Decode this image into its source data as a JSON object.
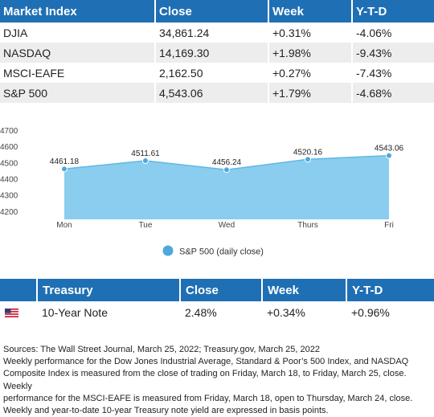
{
  "market_table": {
    "headers": [
      "Market Index",
      "Close",
      "Week",
      "Y-T-D"
    ],
    "rows": [
      [
        "DJIA",
        "34,861.24",
        "+0.31%",
        "-4.06%"
      ],
      [
        "NASDAQ",
        "14,169.30",
        "+1.98%",
        "-9.43%"
      ],
      [
        "MSCI-EAFE",
        "2,162.50",
        "+0.27%",
        "-7.43%"
      ],
      [
        "S&P 500",
        "4,543.06",
        "+1.79%",
        "-4.68%"
      ]
    ]
  },
  "chart_data": {
    "type": "area",
    "categories": [
      "Mon",
      "Tue",
      "Wed",
      "Thurs",
      "Fri"
    ],
    "series": [
      {
        "name": "S&P 500 (daily close)",
        "values": [
          4461.18,
          4511.61,
          4456.24,
          4520.16,
          4543.06
        ]
      }
    ],
    "data_labels": [
      "4461.18",
      "4511.61",
      "4456.24",
      "4520.16",
      "4543.06"
    ],
    "y_ticks": [
      "4700",
      "4600",
      "4500",
      "4400",
      "4300",
      "4200"
    ],
    "ylim": [
      4150,
      4700
    ],
    "grid": false,
    "legend_position": "bottom",
    "fill_color": "#8ACDEE",
    "line_color": "#5FB8E6",
    "marker_color": "#4FA8DC"
  },
  "treasury_table": {
    "headers": [
      "",
      "Treasury",
      "Close",
      "Week",
      "Y-T-D"
    ],
    "row": {
      "flag_icon": "us-flag-icon",
      "name": "10-Year Note",
      "close": "2.48%",
      "week": "+0.34%",
      "ytd": "+0.96%"
    }
  },
  "notes": [
    "Sources: The Wall Street Journal, March 25, 2022; Treasury.gov, March 25, 2022",
    "Weekly performance for the Dow Jones Industrial Average, Standard & Poor’s 500 Index, and NASDAQ",
    "Composite Index is measured from the close of trading on Friday, March 18, to Friday, March 25, close. Weekly",
    "performance for the MSCI-EAFE is measured from Friday, March 18, open to Thursday, March 24, close.",
    "Weekly and year-to-date 10-year Treasury note yield are expressed in basis points."
  ],
  "colors": {
    "header_bg": "#1F6FB5",
    "row_alt": "#EDEDED"
  }
}
